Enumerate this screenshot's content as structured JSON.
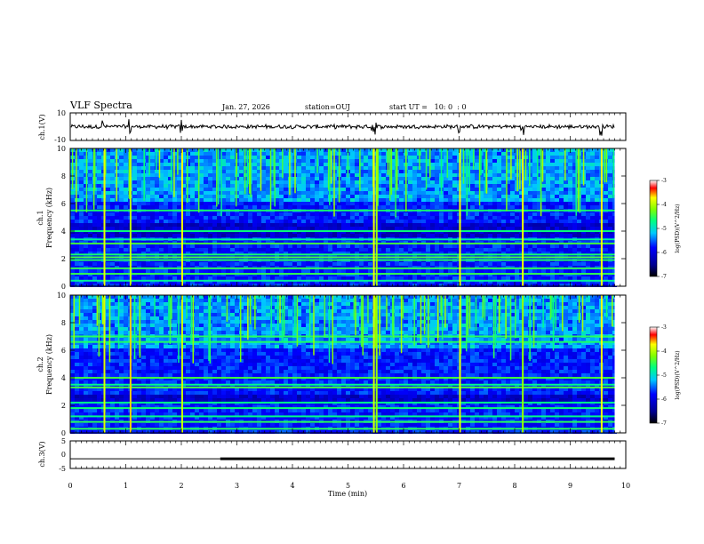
{
  "header": {
    "title": "VLF Spectra",
    "date": "Jan. 27, 2026",
    "station": "station=OUJ",
    "start": "start UT =   10: 0  : 0"
  },
  "chart_data": {
    "type": "heatmap",
    "title": "VLF Spectra",
    "x_axis": {
      "label": "Time (min)",
      "range": [
        0,
        10
      ],
      "ticks": [
        "0",
        "1",
        "2",
        "3",
        "4",
        "5",
        "6",
        "7",
        "8",
        "9",
        "10"
      ]
    },
    "panels": [
      {
        "name": "waveform-ch1",
        "type": "line",
        "ylabel": "ch.1(V)",
        "ylim": [
          -10,
          10
        ],
        "ytick_labels": [
          "10",
          "-10"
        ],
        "trace_level": 0,
        "trace_end_min": 9.8
      },
      {
        "name": "spectrogram-ch1",
        "type": "heatmap",
        "ylabel_line1": "ch.1",
        "ylabel_line2": "Frequency (kHz)",
        "ylim": [
          0,
          10
        ],
        "ytick_labels": [
          "0",
          "2",
          "4",
          "6",
          "8",
          "10"
        ],
        "bright_bands_khz": [
          0.4,
          0.9,
          1.3,
          1.9,
          2.1,
          2.3,
          3.1,
          3.4,
          4.0,
          5.5
        ],
        "dark_band_khz": [
          3.8,
          4.6
        ],
        "strong_bursts_min": [
          0.6,
          1.07,
          2.0,
          5.45,
          5.5,
          7.0,
          8.13,
          9.55
        ],
        "colorbar": {
          "label": "log(PSD)(V^2/Hz)",
          "range": [
            -7,
            -3
          ],
          "tick_labels": [
            "-3",
            "-4",
            "-5",
            "-6",
            "-7"
          ]
        }
      },
      {
        "name": "spectrogram-ch2",
        "type": "heatmap",
        "ylabel_line1": "ch.2",
        "ylabel_line2": "Frequency (kHz)",
        "ylim": [
          0,
          10
        ],
        "ytick_labels": [
          "0",
          "2",
          "4",
          "6",
          "8",
          "10"
        ],
        "bright_bands_khz": [
          0.3,
          0.8,
          1.2,
          1.8,
          2.2,
          3.3,
          3.5,
          4.0,
          6.6,
          7.0
        ],
        "dark_band_khz": [
          2.4,
          3.0
        ],
        "strong_bursts_min": [
          0.6,
          1.07,
          2.0,
          5.45,
          5.5,
          7.0,
          8.13,
          9.55
        ],
        "colorbar": {
          "label": "log(PSD)(V^2/Hz)",
          "range": [
            -7,
            -3
          ],
          "tick_labels": [
            "-3",
            "-4",
            "-5",
            "-6",
            "-7"
          ]
        }
      },
      {
        "name": "waveform-ch3",
        "type": "step",
        "ylabel": "ch.3(V)",
        "ylim": [
          -5,
          5
        ],
        "ytick_labels": [
          "5",
          "0",
          "-5"
        ],
        "level_v": -1.5,
        "thick_after_min": 2.7,
        "trace_end_min": 9.8
      }
    ]
  }
}
